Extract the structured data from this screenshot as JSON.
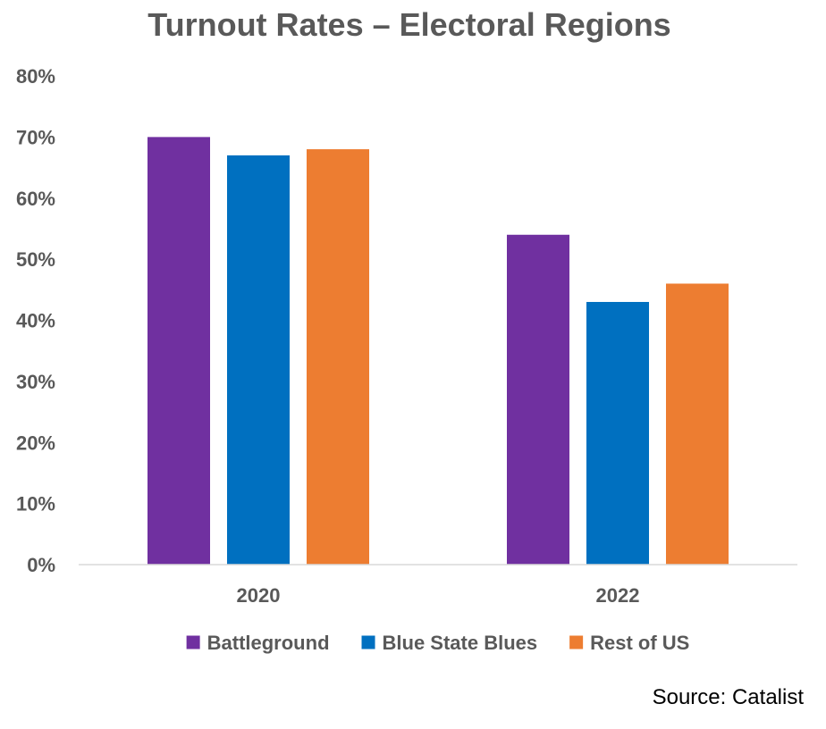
{
  "chart_data": {
    "type": "bar",
    "title": "Turnout Rates – Electoral Regions",
    "categories": [
      "2020",
      "2022"
    ],
    "series": [
      {
        "name": "Battleground",
        "values": [
          70,
          54
        ],
        "color": "#7030a0"
      },
      {
        "name": "Blue State Blues",
        "values": [
          67,
          43
        ],
        "color": "#0070c0"
      },
      {
        "name": "Rest of US",
        "values": [
          68,
          46
        ],
        "color": "#ed7d31"
      }
    ],
    "ylim": [
      0,
      80
    ],
    "yticks": [
      0,
      10,
      20,
      30,
      40,
      50,
      60,
      70,
      80
    ],
    "ytick_suffix": "%",
    "xlabel": "",
    "ylabel": "",
    "grid": false,
    "legend_position": "bottom"
  },
  "source": "Source: Catalist"
}
